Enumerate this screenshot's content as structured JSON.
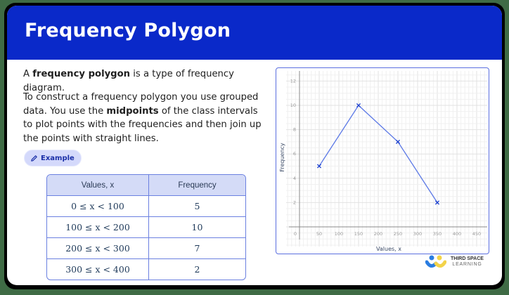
{
  "header": {
    "title": "Frequency Polygon"
  },
  "intro": {
    "p1_pre": "A ",
    "p1_bold": "frequency polygon",
    "p1_post": " is a type of frequency diagram.",
    "p2_pre": "To construct a frequency polygon you use grouped data. You use the ",
    "p2_bold": "midpoints",
    "p2_post": " of the class intervals to plot points with the frequencies and then join up the points with straight lines."
  },
  "example_button": {
    "label": "Example",
    "icon": "pencil-icon"
  },
  "table": {
    "headers": [
      "Values, x",
      "Frequency"
    ],
    "rows": [
      [
        "0 ≤ x < 100",
        "5"
      ],
      [
        "100 ≤ x < 200",
        "10"
      ],
      [
        "200 ≤ x < 300",
        "7"
      ],
      [
        "300 ≤ x < 400",
        "2"
      ]
    ]
  },
  "logo": {
    "line1": "THIRD SPACE",
    "line2": "LEARNING"
  },
  "colors": {
    "brand": "#0a29c9",
    "line": "#5b78e6",
    "marker": "#1a3fd0",
    "table_border": "#6b80e0",
    "logo_blue": "#2a7de1",
    "logo_yellow": "#f3d34a",
    "logo_green": "#2bb673"
  },
  "chart_data": {
    "type": "line",
    "title": "",
    "xlabel": "Values, x",
    "ylabel": "Frequency",
    "x": [
      50,
      150,
      250,
      350
    ],
    "values": [
      5,
      10,
      7,
      2
    ],
    "marker": "x",
    "xlim": [
      0,
      480
    ],
    "ylim": [
      -1.5,
      12.8
    ],
    "x_ticks": [
      0,
      50,
      100,
      150,
      200,
      250,
      300,
      350,
      400,
      450
    ],
    "y_ticks": [
      2,
      4,
      6,
      8,
      10,
      12
    ],
    "grid": true,
    "legend": null
  }
}
